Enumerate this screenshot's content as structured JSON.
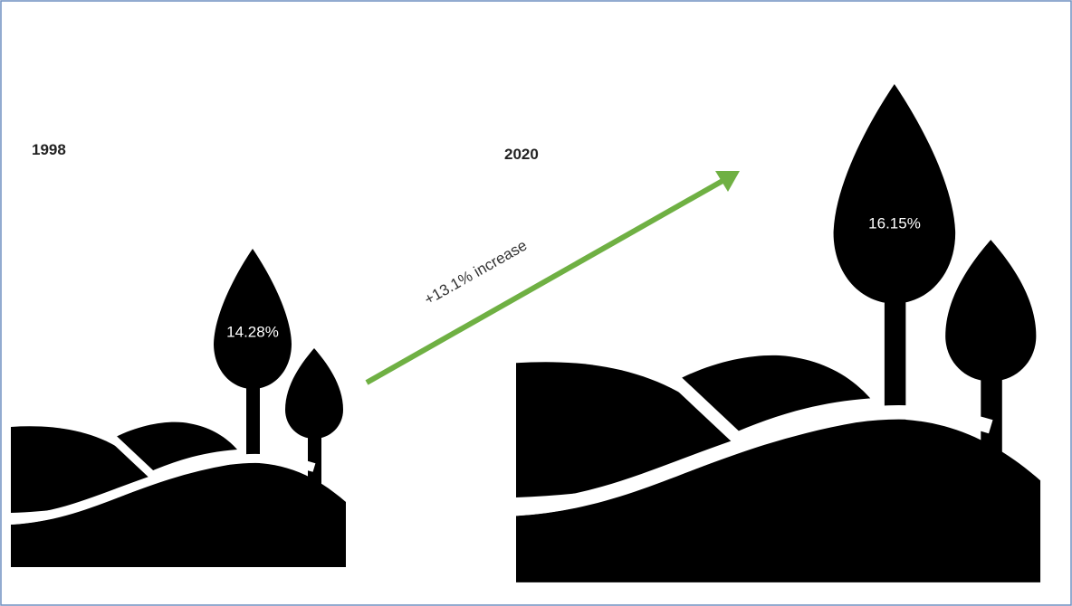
{
  "left": {
    "year": "1998",
    "value": "14.28%"
  },
  "right": {
    "year": "2020",
    "value": "16.15%"
  },
  "arrow": {
    "label": "+13.1% increase"
  }
}
